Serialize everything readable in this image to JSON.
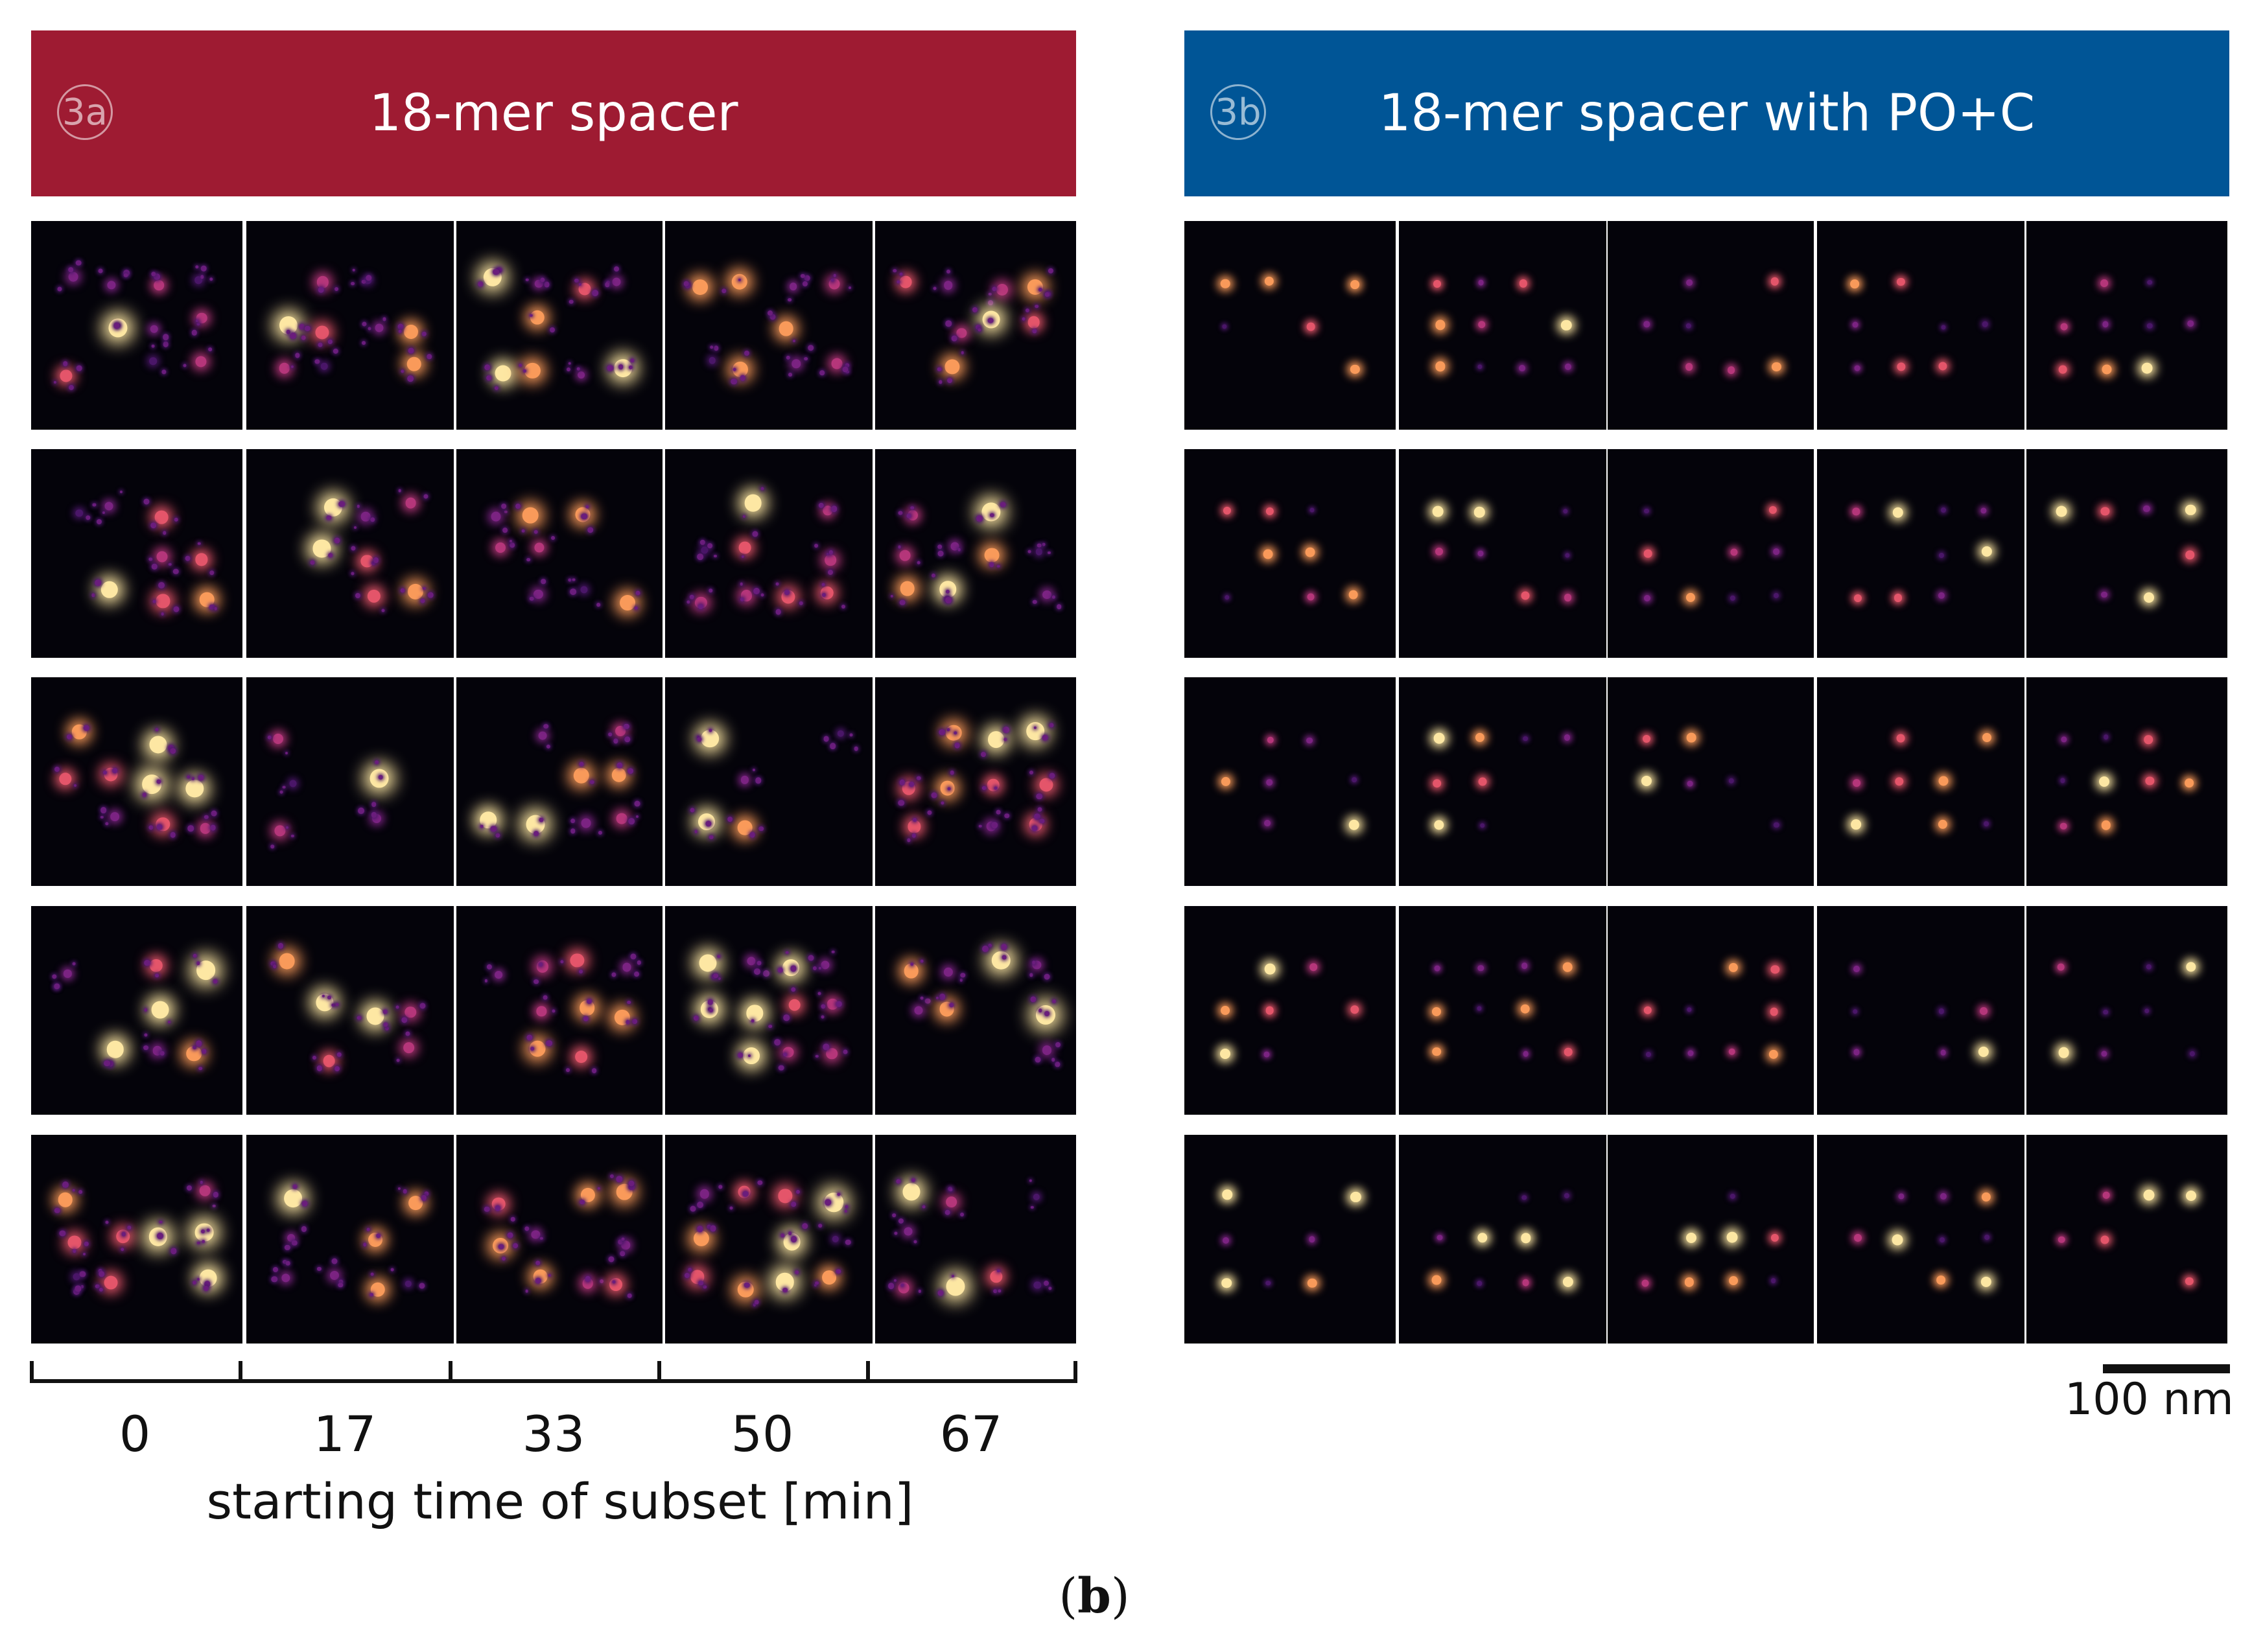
{
  "panels": [
    {
      "badge": "3a",
      "title": "18-mer spacer",
      "color": "#9e1b32"
    },
    {
      "badge": "3b",
      "title": "18-mer spacer with PO+C",
      "color": "#005596"
    }
  ],
  "axis": {
    "tick_labels": [
      "0",
      "17",
      "33",
      "50",
      "67"
    ],
    "title": "starting time of subset [min]"
  },
  "scale_bar": {
    "label": "100 nm"
  },
  "caption": {
    "open": "(",
    "letter": "b",
    "close": ")"
  }
}
